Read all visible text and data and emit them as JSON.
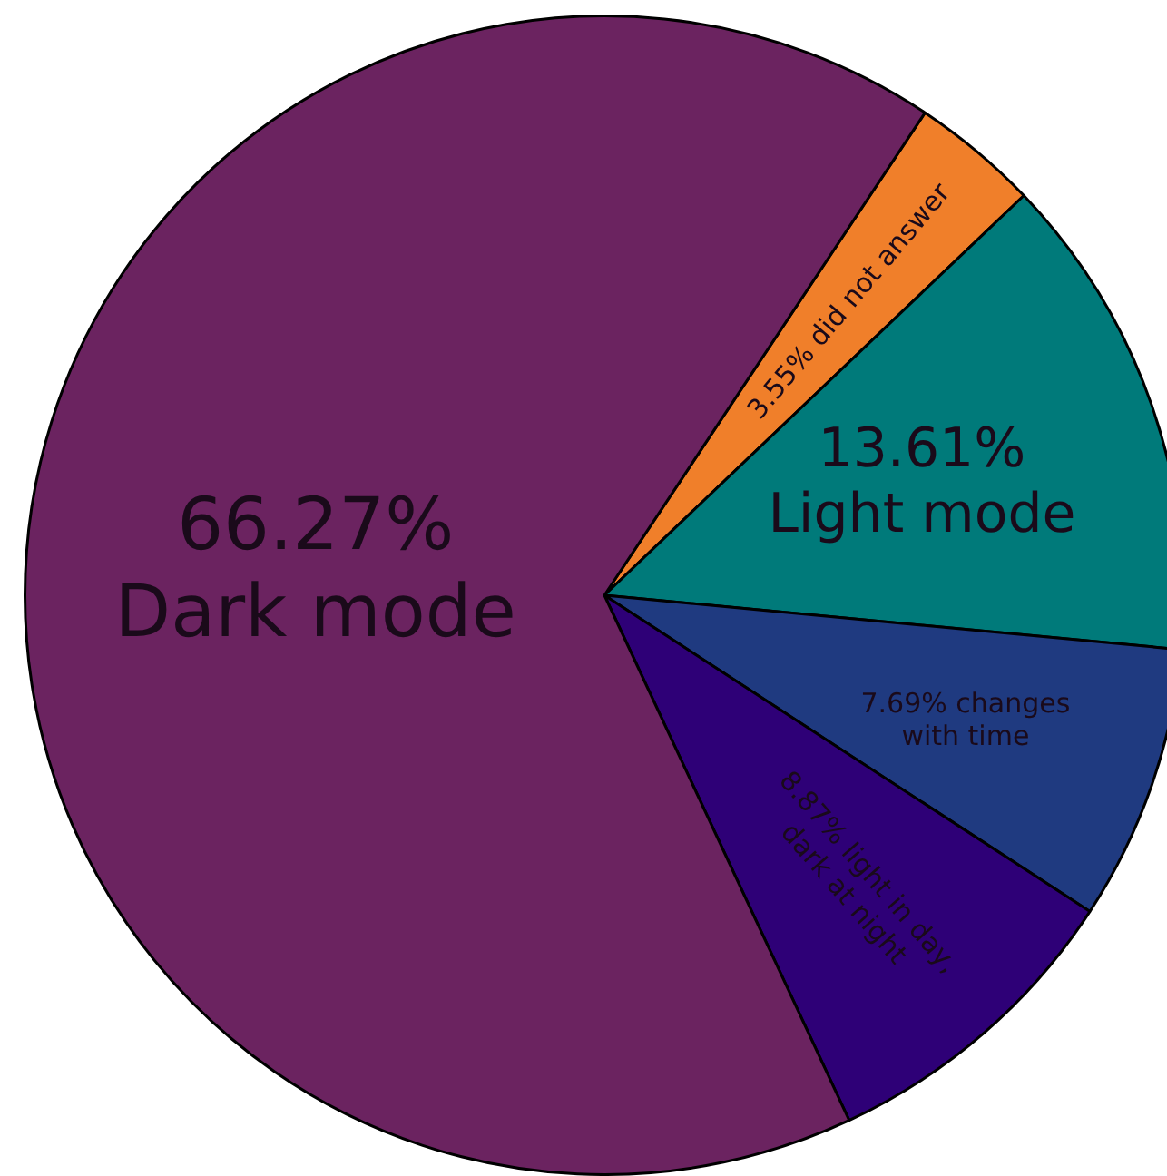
{
  "chart_data": {
    "type": "pie",
    "categories": [
      "did not answer",
      "Light mode",
      "changes with time",
      "light in day, dark at night",
      "Dark mode"
    ],
    "values": [
      3.55,
      13.61,
      7.69,
      8.87,
      66.27
    ],
    "colors": [
      "#f07f2a",
      "#007a7a",
      "#1f3a80",
      "#2e0077",
      "#6b2360"
    ],
    "value_labels": [
      "3.55%",
      "13.61%",
      "7.69%",
      "8.87%",
      "66.27%"
    ],
    "legend": false
  }
}
